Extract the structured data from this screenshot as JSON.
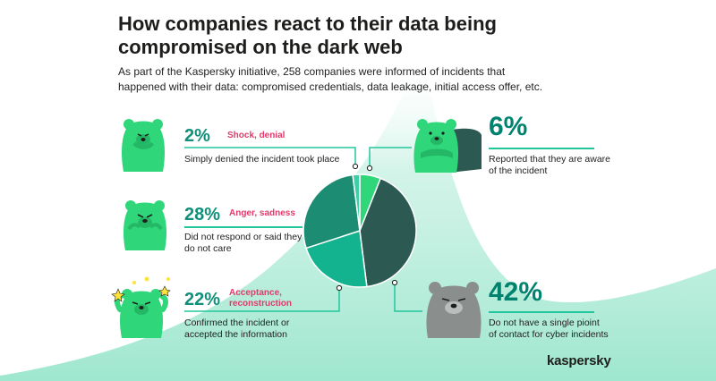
{
  "header": {
    "title_line1": "How companies react to their data being",
    "title_line2": "compromised on the dark web",
    "subtitle_line1": "As part of the Kaspersky initiative, 258 companies were informed of incidents that",
    "subtitle_line2": "happened with their data: compromised credentials, data leakage, initial access offer, etc."
  },
  "callouts": {
    "shock": {
      "value": "2%",
      "emotion": "Shock, denial",
      "desc_line1": "Simply denied the incident took place"
    },
    "aware": {
      "value": "6%",
      "desc_line1": "Reported that they are aware",
      "desc_line2": "of the incident"
    },
    "anger": {
      "value": "28%",
      "emotion": "Anger, sadness",
      "desc_line1": "Did not respond or said they",
      "desc_line2": "do not care"
    },
    "acceptance": {
      "value": "22%",
      "emotion_line1": "Acceptance,",
      "emotion_line2": "reconstruction",
      "desc_line1": "Confirmed the incident or",
      "desc_line2": "accepted the information"
    },
    "nocontact": {
      "value": "42%",
      "desc_line1": "Do not have a single pioint",
      "desc_line2": "of contact for cyber incidents"
    }
  },
  "brand": {
    "logo": "kaspersky"
  },
  "colors": {
    "bright_green": "#2fd67a",
    "teal": "#12a98a",
    "dark_teal": "#1d8a70",
    "dark_slate": "#2c5a52",
    "accent_pink": "#e23a6a",
    "rule_green": "#21c79b"
  },
  "chart_data": {
    "type": "pie",
    "start_angle_deg": 0,
    "slices": [
      {
        "label": "Reported that they are aware of the incident",
        "value": 6,
        "color": "#2fd67a"
      },
      {
        "label": "Do not have a single pioint of contact for cyber incidents",
        "value": 42,
        "color": "#2c5a52"
      },
      {
        "label": "Confirmed the incident or accepted the information",
        "value": 22,
        "color": "#14b38f"
      },
      {
        "label": "Did not respond or said they do not care",
        "value": 28,
        "color": "#1c8c72"
      },
      {
        "label": "Simply denied the incident took place",
        "value": 2,
        "color": "#3ecfa6"
      }
    ]
  }
}
